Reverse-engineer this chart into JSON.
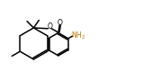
{
  "bg_color": "#ffffff",
  "line_color": "#000000",
  "lw": 1.1,
  "text_color_nh2": "#b87800",
  "fig_width": 1.59,
  "fig_height": 0.89,
  "dpi": 100,
  "xlim": [
    0,
    10
  ],
  "ylim": [
    0,
    5.6
  ]
}
